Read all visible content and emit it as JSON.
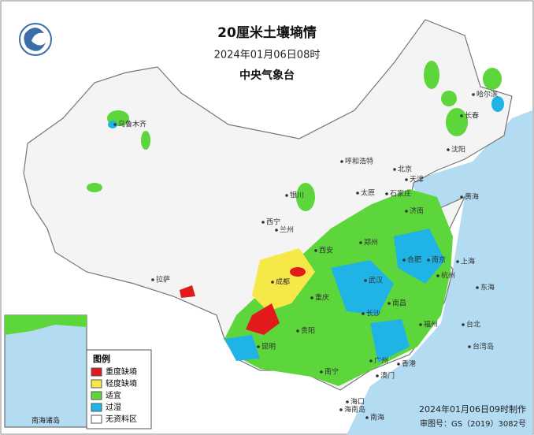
{
  "header": {
    "title": "20厘米土壤墒情",
    "time": "2024年01月06日08时",
    "agency": "中央气象台"
  },
  "legend": {
    "title": "图例",
    "items": [
      {
        "label": "重度缺墒",
        "color": "#e31a1c"
      },
      {
        "label": "轻度缺墒",
        "color": "#f7e84a"
      },
      {
        "label": "适宜",
        "color": "#5cd63a"
      },
      {
        "label": "过湿",
        "color": "#1fb3e6"
      },
      {
        "label": "无资料区",
        "color": "#ffffff"
      }
    ]
  },
  "places": [
    "乌鲁木齐",
    "哈尔滨",
    "长春",
    "沈阳",
    "呼和浩特",
    "北京",
    "天津",
    "石家庄",
    "太原",
    "济南",
    "银川",
    "兰州",
    "西宁",
    "西安",
    "郑州",
    "合肥",
    "南京",
    "上海",
    "杭州",
    "武汉",
    "长沙",
    "南昌",
    "福州",
    "台北",
    "重庆",
    "成都",
    "贵阳",
    "昆明",
    "南宁",
    "广州",
    "香港",
    "澳门",
    "海口",
    "拉萨",
    "黄海",
    "东海",
    "南海",
    "台湾岛",
    "海南岛"
  ],
  "inset": {
    "label": "南海诸岛"
  },
  "footer": {
    "made": "2024年01月06日09时制作",
    "approval": "审图号：GS（2019）3082号"
  }
}
